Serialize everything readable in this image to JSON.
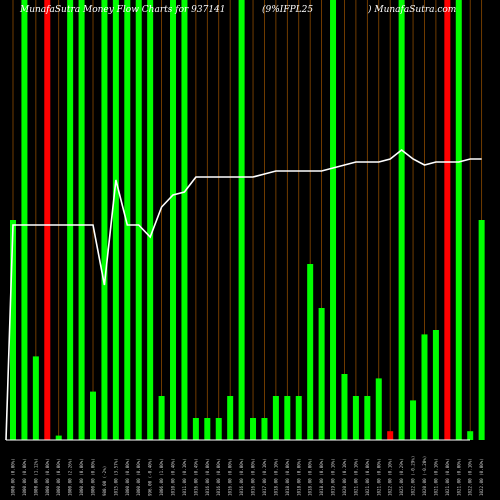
{
  "header": {
    "title_left": "MunafaSutra  Money Flow  Charts for 937141",
    "title_mid": "(9%IFPL25",
    "title_right": ") MunafaSutra.com"
  },
  "colors": {
    "background": "#000000",
    "up": "#00ff00",
    "down": "#ff0000",
    "grid": "#8b4a00",
    "line": "#ffffff",
    "baseline": "#ffffff"
  },
  "chart_data": {
    "type": "bar",
    "ylim": [
      0,
      100
    ],
    "categories": [
      "1000.00 (0.00%)",
      "1000.00 (0.00%)",
      "1000.00 (1.12%)",
      "1000.00 (0.00%)",
      "1000.00 (0.00%)",
      "1000.00 (2.26%)",
      "1000.00 (0.00%)",
      "1000.00 (0.00%)",
      "980.00 (-2%)",
      "1015.00 (3.57%)",
      "1000.00 (0.00%)",
      "1000.00 (0.00%)",
      "996.00 (-0.40%)",
      "1006.00 (1.00%)",
      "1010.00 (0.40%)",
      "1011.00 (0.10%)",
      "1016.00 (0.49%)",
      "1016.00 (0.00%)",
      "1016.00 (0.00%)",
      "1016.00 (0.00%)",
      "1016.00 (0.00%)",
      "1016.00 (0.00%)",
      "1017.00 (0.10%)",
      "1018.00 (0.10%)",
      "1018.00 (0.00%)",
      "1018.00 (0.00%)",
      "1018.00 (0.00%)",
      "1018.00 (0.00%)",
      "1019.00 (0.10%)",
      "1020.00 (0.10%)",
      "1021.00 (0.10%)",
      "1021.00 (0.00%)",
      "1021.00 (0.00%)",
      "1022.00 (0.10%)",
      "1025.00 (0.29%)",
      "1022.00 (-0.29%)",
      "1020.00 (-0.20%)",
      "1021.00 (0.10%)",
      "1021.00 (0.00%)",
      "1021.00 (0.00%)",
      "1022.00 (0.10%)",
      "1022.00 (0.00%)"
    ],
    "series": [
      {
        "values": [
          50,
          100,
          19,
          100,
          1,
          100,
          100,
          11,
          100,
          100,
          100,
          100,
          100,
          10,
          100,
          100,
          5,
          5,
          5,
          10,
          100,
          5,
          5,
          10,
          10,
          10,
          40,
          30,
          100,
          15,
          10,
          10,
          14,
          2,
          100,
          9,
          24,
          25,
          100,
          100,
          2,
          50
        ],
        "direction": [
          "up",
          "up",
          "up",
          "down",
          "up",
          "up",
          "up",
          "up",
          "up",
          "up",
          "up",
          "up",
          "up",
          "up",
          "up",
          "up",
          "up",
          "up",
          "up",
          "up",
          "up",
          "up",
          "up",
          "up",
          "up",
          "up",
          "up",
          "up",
          "up",
          "up",
          "up",
          "up",
          "up",
          "down",
          "up",
          "up",
          "up",
          "up",
          "down",
          "up",
          "up",
          "up"
        ]
      },
      {
        "values": [
          1000,
          1000,
          1000,
          1000,
          1000,
          1000,
          1000,
          1000,
          980,
          1015,
          1000,
          1000,
          996,
          1006,
          1010,
          1011,
          1016,
          1016,
          1016,
          1016,
          1016,
          1016,
          1017,
          1018,
          1018,
          1018,
          1018,
          1018,
          1019,
          1020,
          1021,
          1021,
          1021,
          1022,
          1025,
          1022,
          1020,
          1021,
          1021,
          1021,
          1022,
          1022
        ]
      }
    ]
  }
}
